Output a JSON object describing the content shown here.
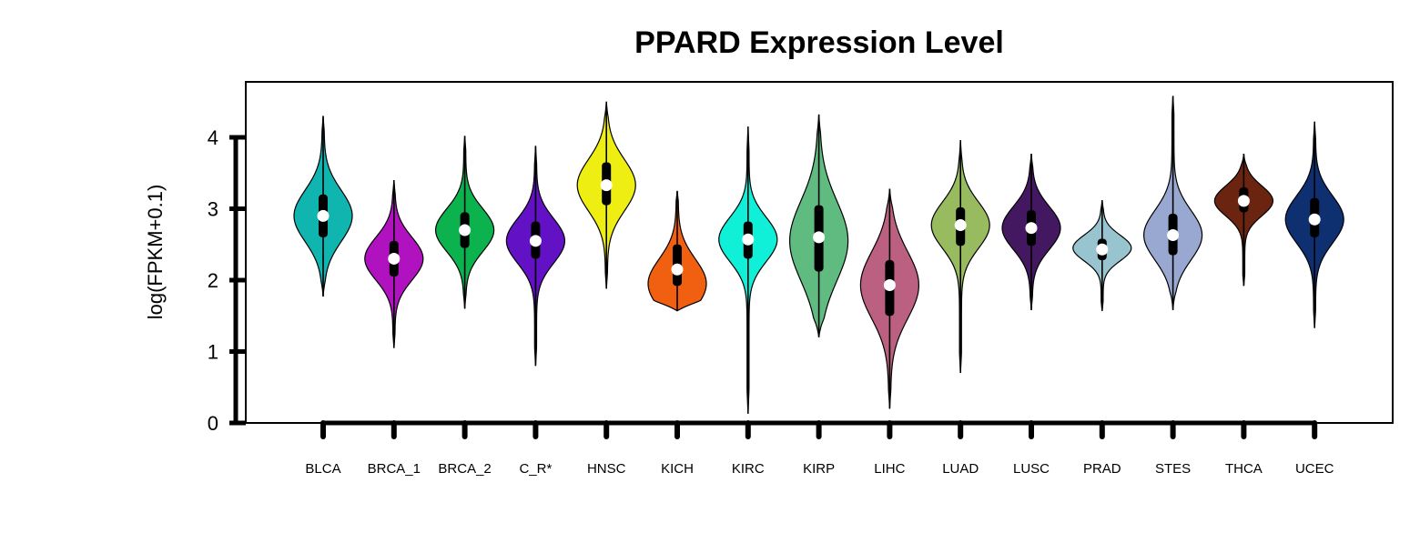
{
  "chart_data": {
    "type": "violin",
    "title": "PPARD Expression Level",
    "ylabel": "log(FPKM+0.1)",
    "xlabel": "",
    "ylim": [
      0,
      4.75
    ],
    "yticks": [
      0,
      1,
      2,
      3,
      4
    ],
    "grid": false,
    "legend": "none",
    "categories": [
      "BLCA",
      "BRCA_1",
      "BRCA_2",
      "C_R*",
      "HNSC",
      "KICH",
      "KIRC",
      "KIRP",
      "LIHC",
      "LUAD",
      "LUSC",
      "PRAD",
      "STES",
      "THCA",
      "UCEC"
    ],
    "colors": [
      "#10b5b0",
      "#b012c0",
      "#0cb24e",
      "#6212c4",
      "#eeee12",
      "#f06010",
      "#10f0d8",
      "#60bb80",
      "#bb6080",
      "#98bb60",
      "#441860",
      "#98c4d0",
      "#98a8d0",
      "#6a2410",
      "#0e3070"
    ],
    "series": [
      {
        "category": "BLCA",
        "min": 1.77,
        "max": 4.3,
        "q1": 2.6,
        "q3": 3.2,
        "median": 2.9,
        "mode": 2.9
      },
      {
        "category": "BRCA_1",
        "min": 1.05,
        "max": 3.4,
        "q1": 2.05,
        "q3": 2.55,
        "median": 2.3,
        "mode": 2.3
      },
      {
        "category": "BRCA_2",
        "min": 1.6,
        "max": 4.02,
        "q1": 2.45,
        "q3": 2.95,
        "median": 2.7,
        "mode": 2.7
      },
      {
        "category": "C_R*",
        "min": 0.8,
        "max": 3.88,
        "q1": 2.3,
        "q3": 2.82,
        "median": 2.55,
        "mode": 2.55
      },
      {
        "category": "HNSC",
        "min": 1.88,
        "max": 4.5,
        "q1": 3.05,
        "q3": 3.65,
        "median": 3.33,
        "mode": 3.33
      },
      {
        "category": "KICH",
        "min": 1.57,
        "max": 3.25,
        "q1": 1.92,
        "q3": 2.5,
        "median": 2.15,
        "mode": 1.95
      },
      {
        "category": "KIRC",
        "min": 0.13,
        "max": 4.15,
        "q1": 2.3,
        "q3": 2.82,
        "median": 2.57,
        "mode": 2.57
      },
      {
        "category": "KIRP",
        "min": 1.2,
        "max": 4.32,
        "q1": 2.12,
        "q3": 3.05,
        "median": 2.6,
        "mode": 2.55
      },
      {
        "category": "LIHC",
        "min": 0.2,
        "max": 3.28,
        "q1": 1.5,
        "q3": 2.28,
        "median": 1.93,
        "mode": 1.93
      },
      {
        "category": "LUAD",
        "min": 0.7,
        "max": 3.96,
        "q1": 2.48,
        "q3": 3.02,
        "median": 2.77,
        "mode": 2.77
      },
      {
        "category": "LUSC",
        "min": 1.58,
        "max": 3.77,
        "q1": 2.48,
        "q3": 2.98,
        "median": 2.73,
        "mode": 2.73
      },
      {
        "category": "PRAD",
        "min": 1.57,
        "max": 3.12,
        "q1": 2.28,
        "q3": 2.58,
        "median": 2.43,
        "mode": 2.45
      },
      {
        "category": "STES",
        "min": 1.58,
        "max": 4.58,
        "q1": 2.35,
        "q3": 2.93,
        "median": 2.63,
        "mode": 2.63
      },
      {
        "category": "THCA",
        "min": 1.92,
        "max": 3.77,
        "q1": 2.95,
        "q3": 3.3,
        "median": 3.11,
        "mode": 3.11
      },
      {
        "category": "UCEC",
        "min": 1.33,
        "max": 4.22,
        "q1": 2.6,
        "q3": 3.15,
        "median": 2.85,
        "mode": 2.85
      }
    ]
  }
}
